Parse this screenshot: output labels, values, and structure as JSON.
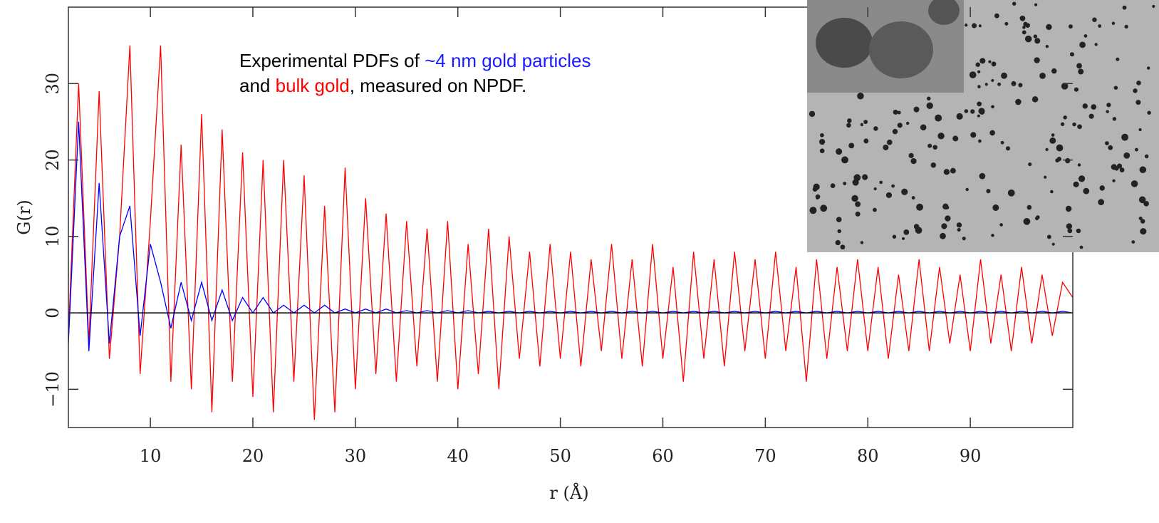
{
  "chart_data": {
    "type": "line",
    "xlabel": "r (Å)",
    "ylabel": "G(r)",
    "annotation": [
      [
        {
          "text": "Experimental PDFs of "
        },
        {
          "text": "~4 nm gold particles",
          "color": "#1a1aff"
        }
      ],
      [
        {
          "text": "and "
        },
        {
          "text": "bulk gold",
          "color": "#ff0000"
        },
        {
          "text": ", measured on NPDF."
        }
      ]
    ],
    "xlim": [
      2,
      100
    ],
    "ylim": [
      -15,
      40
    ],
    "xticks": [
      10,
      20,
      30,
      40,
      50,
      60,
      70,
      80,
      90
    ],
    "yticks": [
      {
        "value": -10,
        "label": "−10"
      },
      0,
      10,
      20,
      30
    ],
    "x": [
      2,
      3,
      4,
      5,
      6,
      7,
      8,
      9,
      10,
      11,
      12,
      13,
      14,
      15,
      16,
      17,
      18,
      19,
      20,
      21,
      22,
      23,
      24,
      25,
      26,
      27,
      28,
      29,
      30,
      31,
      32,
      33,
      34,
      35,
      36,
      37,
      38,
      39,
      40,
      41,
      42,
      43,
      44,
      45,
      46,
      47,
      48,
      49,
      50,
      51,
      52,
      53,
      54,
      55,
      56,
      57,
      58,
      59,
      60,
      61,
      62,
      63,
      64,
      65,
      66,
      67,
      68,
      69,
      70,
      71,
      72,
      73,
      74,
      75,
      76,
      77,
      78,
      79,
      80,
      81,
      82,
      83,
      84,
      85,
      86,
      87,
      88,
      89,
      90,
      91,
      92,
      93,
      94,
      95,
      96,
      97,
      98,
      99,
      100
    ],
    "series": [
      {
        "color": "#ff0000",
        "values": [
          -3,
          30,
          -4,
          29,
          -6,
          10,
          35,
          -8,
          12,
          35,
          -9,
          22,
          -10,
          26,
          -13,
          24,
          -9,
          21,
          -11,
          20,
          -13,
          20,
          -9,
          18,
          -14,
          14,
          -13,
          19,
          -10,
          15,
          -8,
          13,
          -9,
          12,
          -7,
          11,
          -9,
          12,
          -10,
          9,
          -8,
          11,
          -10,
          10,
          -6,
          8,
          -7,
          9,
          -6,
          8,
          -7,
          7,
          -5,
          9,
          -6,
          7,
          -7,
          9,
          -6,
          6,
          -9,
          8,
          -6,
          7,
          -7,
          8,
          -5,
          7,
          -6,
          8,
          -5,
          6,
          -9,
          7,
          -6,
          6,
          -5,
          7,
          -5,
          6,
          -6,
          5,
          -5,
          7,
          -5,
          6,
          -4,
          5,
          -5,
          7,
          -4,
          5,
          -5,
          6,
          -4,
          5,
          -3,
          4,
          2
        ]
      },
      {
        "color": "#0000ff",
        "values": [
          -4,
          25,
          -5,
          17,
          -4,
          10,
          14,
          -3,
          9,
          4,
          -2,
          4,
          -1,
          4,
          -1,
          3,
          -1,
          2,
          0,
          2,
          0,
          1,
          0,
          1,
          0,
          1,
          0,
          0.5,
          0,
          0.5,
          0,
          0.5,
          0,
          0.3,
          0,
          0.3,
          0,
          0.3,
          0,
          0.3,
          0,
          0.2,
          0,
          0.2,
          0,
          0.2,
          0,
          0.2,
          0,
          0.2,
          0,
          0.2,
          0,
          0.2,
          0,
          0.2,
          0,
          0.2,
          0,
          0.2,
          0,
          0.2,
          0,
          0.2,
          0,
          0.2,
          0,
          0.2,
          0,
          0.2,
          0,
          0.2,
          0,
          0.2,
          0,
          0.2,
          0,
          0.2,
          0,
          0.2,
          0,
          0.2,
          0,
          0.2,
          0,
          0.2,
          0,
          0.2,
          0,
          0.2,
          0,
          0.2,
          0,
          0.2,
          0,
          0.2,
          0,
          0.2,
          0
        ]
      }
    ]
  }
}
